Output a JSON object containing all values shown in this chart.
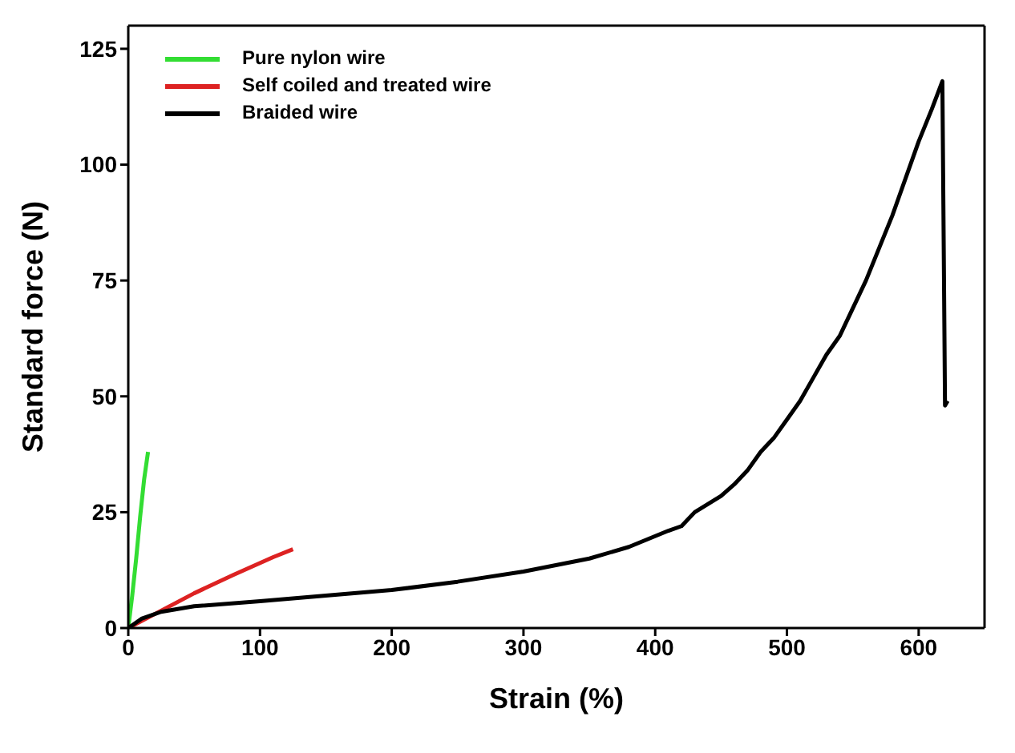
{
  "chart_data": {
    "type": "line",
    "xlabel": "Strain (%)",
    "ylabel": "Standard force (N)",
    "xlim": [
      0,
      650
    ],
    "xticks": [
      0,
      100,
      200,
      300,
      400,
      500,
      600
    ],
    "ylim": [
      0,
      130
    ],
    "yticks": [
      0,
      25,
      50,
      75,
      100,
      125
    ],
    "grid": false,
    "legend": "top left",
    "marker": "none",
    "line_style": "solid",
    "series": [
      {
        "name": "Pure nylon wire",
        "color": "#33dd33",
        "x": [
          0,
          3,
          6,
          9,
          12,
          15
        ],
        "values": [
          0,
          7,
          15,
          24,
          32,
          38
        ]
      },
      {
        "name": "Self coiled and treated wire",
        "color": "#dd2222",
        "x": [
          0,
          20,
          50,
          80,
          110,
          125
        ],
        "values": [
          0,
          3,
          7.5,
          11.5,
          15.3,
          17
        ]
      },
      {
        "name": "Braided wire",
        "color": "#000000",
        "x": [
          0,
          10,
          25,
          50,
          100,
          150,
          200,
          250,
          300,
          350,
          380,
          410,
          420,
          430,
          450,
          460,
          470,
          480,
          490,
          500,
          510,
          520,
          530,
          540,
          550,
          560,
          570,
          580,
          590,
          600,
          610,
          618,
          620,
          622
        ],
        "values": [
          0,
          2,
          3.5,
          4.7,
          5.8,
          7,
          8.2,
          10,
          12.2,
          15,
          17.5,
          21,
          22,
          25,
          28.5,
          31,
          34,
          38,
          41,
          45,
          49,
          54,
          59,
          63,
          69,
          75,
          82,
          89,
          97,
          105,
          112,
          118,
          48,
          49
        ]
      }
    ]
  }
}
